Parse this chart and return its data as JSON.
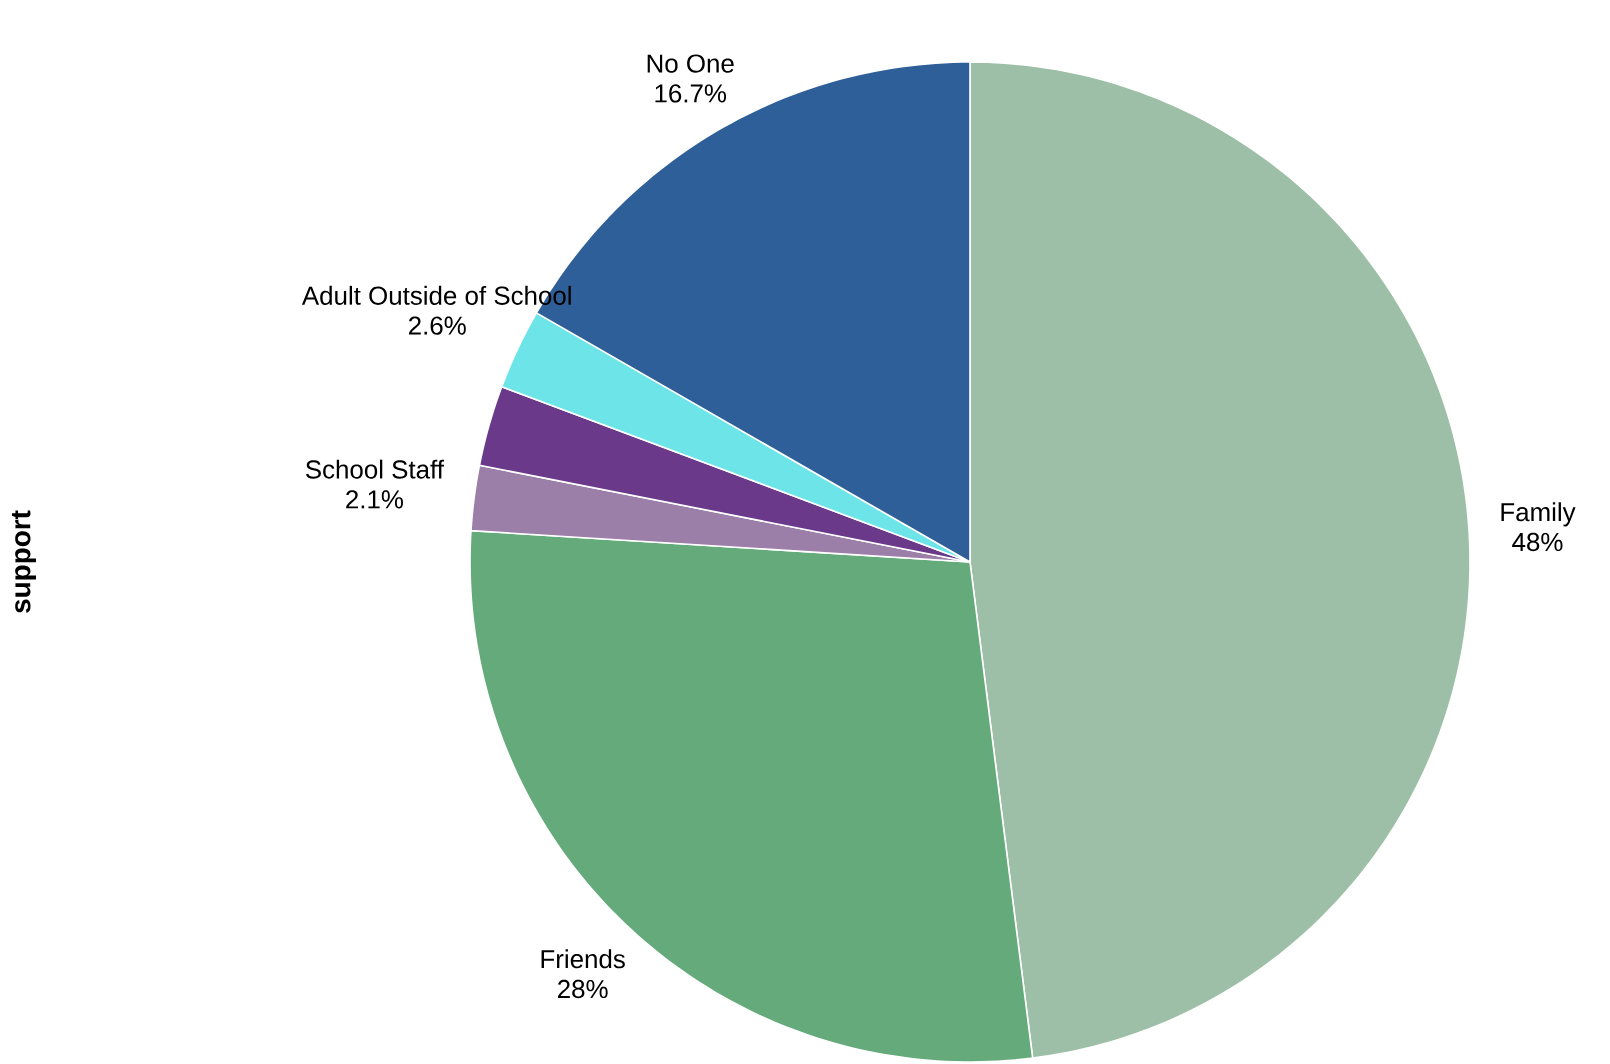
{
  "chart_data": {
    "type": "pie",
    "ylabel": "support",
    "categories": [
      "Family",
      "Friends",
      "School Staff",
      null,
      "Adult Outside of School",
      "No One"
    ],
    "values": [
      48,
      28,
      2.1,
      2.6,
      2.6,
      16.7
    ],
    "value_labels": [
      "48%",
      "28%",
      "2.1%",
      null,
      "2.6%",
      "16.7%"
    ],
    "colors": [
      "#9dbfa7",
      "#64aa7a",
      "#9b7fa8",
      "#6b398a",
      "#6ce4e8",
      "#2e5f98"
    ]
  }
}
